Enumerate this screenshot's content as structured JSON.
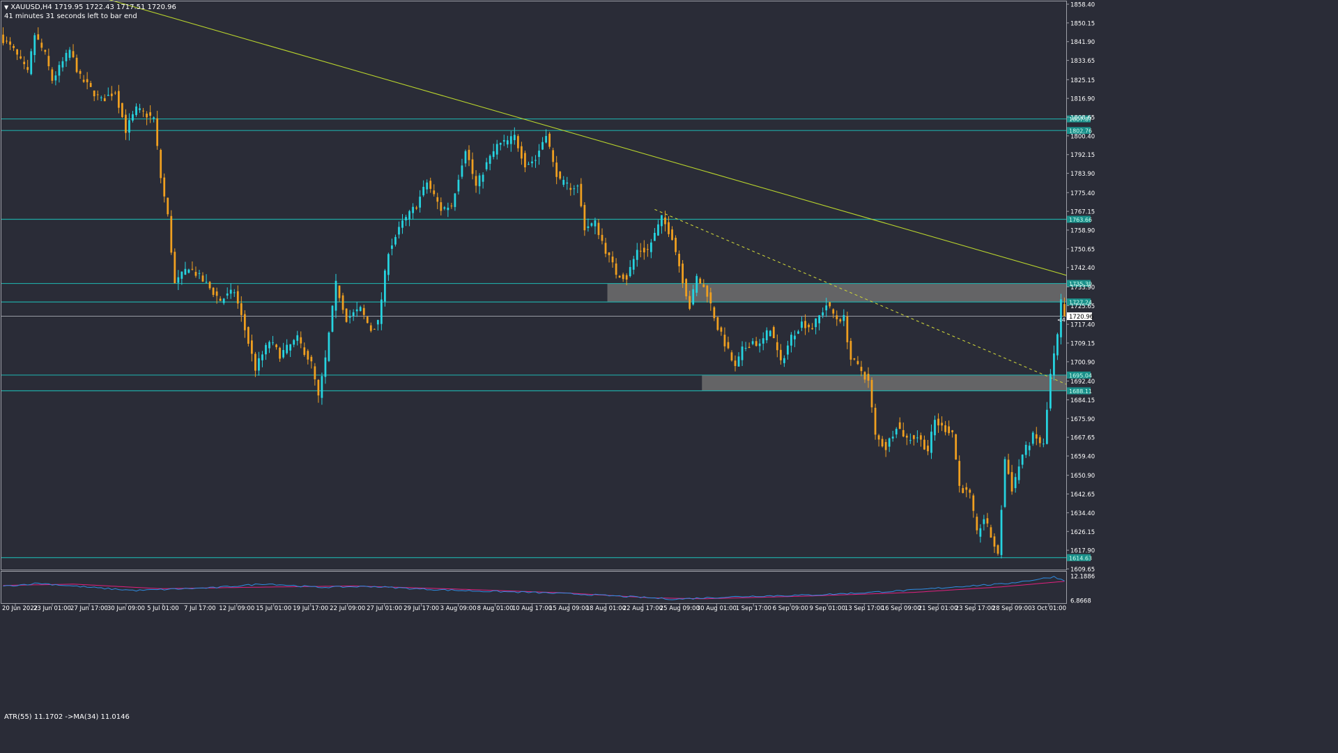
{
  "chart_data": {
    "type": "candlestick",
    "symbol_line": "XAUUSD,H4  1719.95 1722.43 1717.51 1720.96",
    "timer_text": "41 minutes 31 seconds left to bar end",
    "current_price": 1720.96,
    "current_price_label": "1720.96",
    "shift_marker": "<4",
    "y_axis": {
      "ylim": [
        1609.65,
        1858.4
      ],
      "tick_values": [
        1858.4,
        1850.15,
        1841.9,
        1833.65,
        1825.15,
        1816.9,
        1808.65,
        1800.4,
        1792.15,
        1783.9,
        1775.4,
        1767.15,
        1758.9,
        1750.65,
        1742.4,
        1733.9,
        1725.65,
        1717.4,
        1709.15,
        1700.9,
        1692.4,
        1684.15,
        1675.9,
        1667.65,
        1659.4,
        1650.9,
        1642.65,
        1634.4,
        1626.15,
        1617.9,
        1609.65
      ],
      "tick_labels": [
        "1858.40",
        "1850.15",
        "1841.90",
        "1833.65",
        "1825.15",
        "1816.90",
        "1808.65",
        "1800.40",
        "1792.15",
        "1783.90",
        "1775.40",
        "1767.15",
        "1758.90",
        "1750.65",
        "1742.40",
        "1733.90",
        "1725.65",
        "1717.40",
        "1709.15",
        "1700.90",
        "1692.40",
        "1684.15",
        "1675.90",
        "1667.65",
        "1659.40",
        "1650.90",
        "1642.65",
        "1634.40",
        "1626.15",
        "1617.90",
        "1609.65"
      ]
    },
    "x_axis": {
      "labels": [
        "20 Jun 2022",
        "23 Jun 01:00",
        "27 Jun 17:00",
        "30 Jun 09:00",
        "5 Jul 01:00",
        "7 Jul 17:00",
        "12 Jul 09:00",
        "15 Jul 01:00",
        "19 Jul 17:00",
        "22 Jul 09:00",
        "27 Jul 01:00",
        "29 Jul 17:00",
        "3 Aug 09:00",
        "8 Aug 01:00",
        "10 Aug 17:00",
        "15 Aug 09:00",
        "18 Aug 01:00",
        "22 Aug 17:00",
        "25 Aug 09:00",
        "30 Aug 01:00",
        "1 Sep 17:00",
        "6 Sep 09:00",
        "9 Sep 01:00",
        "13 Sep 17:00",
        "16 Sep 09:00",
        "21 Sep 01:00",
        "23 Sep 17:00",
        "28 Sep 09:00",
        "3 Oct 01:00"
      ]
    },
    "horizontal_levels": [
      {
        "value": 1807.87,
        "label": "1807.87"
      },
      {
        "value": 1802.76,
        "label": "1802.76"
      },
      {
        "value": 1763.66,
        "label": "1763.66"
      },
      {
        "value": 1735.39,
        "label": "1735.39"
      },
      {
        "value": 1727.24,
        "label": "1727.24"
      },
      {
        "value": 1695.04,
        "label": "1695.04"
      },
      {
        "value": 1688.11,
        "label": "1688.11"
      },
      {
        "value": 1614.63,
        "label": "1614.63"
      }
    ],
    "zones": [
      {
        "high": 1735.39,
        "low": 1727.24,
        "start_index": 173
      },
      {
        "high": 1695.04,
        "low": 1688.11,
        "start_index": 200
      }
    ],
    "trendlines": [
      {
        "style": "solid",
        "color": "#b9d42d",
        "from": {
          "index": 30,
          "value": 1860.5
        },
        "to": {
          "index": 304,
          "value": 1739.0
        }
      },
      {
        "style": "dashed",
        "color": "#c8cf3a",
        "from": {
          "index": 186,
          "value": 1768.0
        },
        "to": {
          "index": 304,
          "value": 1691.0
        }
      }
    ],
    "anchors": [
      {
        "index": 0,
        "value": 1843
      },
      {
        "index": 3,
        "value": 1838
      },
      {
        "index": 7,
        "value": 1828
      },
      {
        "index": 9,
        "value": 1845
      },
      {
        "index": 12,
        "value": 1836
      },
      {
        "index": 14,
        "value": 1825
      },
      {
        "index": 19,
        "value": 1838
      },
      {
        "index": 22,
        "value": 1826
      },
      {
        "index": 28,
        "value": 1816
      },
      {
        "index": 32,
        "value": 1820
      },
      {
        "index": 35,
        "value": 1803
      },
      {
        "index": 38,
        "value": 1812
      },
      {
        "index": 43,
        "value": 1808
      },
      {
        "index": 45,
        "value": 1782
      },
      {
        "index": 47,
        "value": 1765
      },
      {
        "index": 49,
        "value": 1735
      },
      {
        "index": 53,
        "value": 1743
      },
      {
        "index": 58,
        "value": 1735
      },
      {
        "index": 62,
        "value": 1728
      },
      {
        "index": 66,
        "value": 1732
      },
      {
        "index": 69,
        "value": 1715
      },
      {
        "index": 72,
        "value": 1698
      },
      {
        "index": 76,
        "value": 1710
      },
      {
        "index": 79,
        "value": 1704
      },
      {
        "index": 84,
        "value": 1711
      },
      {
        "index": 88,
        "value": 1700
      },
      {
        "index": 90,
        "value": 1685
      },
      {
        "index": 92,
        "value": 1702
      },
      {
        "index": 95,
        "value": 1735
      },
      {
        "index": 98,
        "value": 1720
      },
      {
        "index": 102,
        "value": 1724
      },
      {
        "index": 105,
        "value": 1715
      },
      {
        "index": 107,
        "value": 1718
      },
      {
        "index": 110,
        "value": 1750
      },
      {
        "index": 114,
        "value": 1762
      },
      {
        "index": 118,
        "value": 1770
      },
      {
        "index": 121,
        "value": 1780
      },
      {
        "index": 125,
        "value": 1768
      },
      {
        "index": 128,
        "value": 1770
      },
      {
        "index": 132,
        "value": 1795
      },
      {
        "index": 135,
        "value": 1778
      },
      {
        "index": 138,
        "value": 1788
      },
      {
        "index": 141,
        "value": 1796
      },
      {
        "index": 144,
        "value": 1798
      },
      {
        "index": 146,
        "value": 1800
      },
      {
        "index": 149,
        "value": 1788
      },
      {
        "index": 152,
        "value": 1790
      },
      {
        "index": 155,
        "value": 1802
      },
      {
        "index": 157,
        "value": 1788
      },
      {
        "index": 159,
        "value": 1780
      },
      {
        "index": 162,
        "value": 1778
      },
      {
        "index": 164,
        "value": 1778
      },
      {
        "index": 166,
        "value": 1760
      },
      {
        "index": 169,
        "value": 1762
      },
      {
        "index": 172,
        "value": 1750
      },
      {
        "index": 175,
        "value": 1740
      },
      {
        "index": 178,
        "value": 1738
      },
      {
        "index": 181,
        "value": 1750
      },
      {
        "index": 184,
        "value": 1750
      },
      {
        "index": 188,
        "value": 1764
      },
      {
        "index": 191,
        "value": 1756
      },
      {
        "index": 194,
        "value": 1737
      },
      {
        "index": 196,
        "value": 1725
      },
      {
        "index": 198,
        "value": 1738
      },
      {
        "index": 201,
        "value": 1731
      },
      {
        "index": 204,
        "value": 1716
      },
      {
        "index": 206,
        "value": 1709
      },
      {
        "index": 209,
        "value": 1698
      },
      {
        "index": 211,
        "value": 1706
      },
      {
        "index": 214,
        "value": 1710
      },
      {
        "index": 216,
        "value": 1708
      },
      {
        "index": 219,
        "value": 1716
      },
      {
        "index": 222,
        "value": 1700
      },
      {
        "index": 225,
        "value": 1712
      },
      {
        "index": 228,
        "value": 1718
      },
      {
        "index": 231,
        "value": 1716
      },
      {
        "index": 235,
        "value": 1726
      },
      {
        "index": 238,
        "value": 1720
      },
      {
        "index": 240,
        "value": 1720
      },
      {
        "index": 242,
        "value": 1702
      },
      {
        "index": 245,
        "value": 1697
      },
      {
        "index": 247,
        "value": 1692
      },
      {
        "index": 249,
        "value": 1668
      },
      {
        "index": 252,
        "value": 1663
      },
      {
        "index": 255,
        "value": 1673
      },
      {
        "index": 258,
        "value": 1667
      },
      {
        "index": 261,
        "value": 1668
      },
      {
        "index": 264,
        "value": 1662
      },
      {
        "index": 266,
        "value": 1675
      },
      {
        "index": 268,
        "value": 1672
      },
      {
        "index": 271,
        "value": 1670
      },
      {
        "index": 273,
        "value": 1646
      },
      {
        "index": 276,
        "value": 1642
      },
      {
        "index": 278,
        "value": 1625
      },
      {
        "index": 280,
        "value": 1632
      },
      {
        "index": 283,
        "value": 1620
      },
      {
        "index": 284,
        "value": 1615
      },
      {
        "index": 286,
        "value": 1658
      },
      {
        "index": 288,
        "value": 1645
      },
      {
        "index": 291,
        "value": 1660
      },
      {
        "index": 294,
        "value": 1668
      },
      {
        "index": 297,
        "value": 1664
      },
      {
        "index": 299,
        "value": 1695
      },
      {
        "index": 301,
        "value": 1712
      },
      {
        "index": 302,
        "value": 1727
      },
      {
        "index": 303,
        "value": 1721
      }
    ],
    "indicator": {
      "label": "ATR(55) 11.1702  ->MA(34) 11.0146",
      "atr_value": 11.1702,
      "ma_value": 11.0146,
      "ylim": [
        6.8668,
        12.1886
      ],
      "tick_labels": [
        "12.1886",
        "6.8668"
      ],
      "atr_anchors": [
        {
          "index": 0,
          "value": 9.9
        },
        {
          "index": 10,
          "value": 10.6
        },
        {
          "index": 18,
          "value": 10.1
        },
        {
          "index": 28,
          "value": 9.5
        },
        {
          "index": 38,
          "value": 9.0
        },
        {
          "index": 48,
          "value": 9.3
        },
        {
          "index": 60,
          "value": 9.6
        },
        {
          "index": 75,
          "value": 10.5
        },
        {
          "index": 90,
          "value": 9.7
        },
        {
          "index": 105,
          "value": 9.9
        },
        {
          "index": 120,
          "value": 9.3
        },
        {
          "index": 135,
          "value": 8.9
        },
        {
          "index": 150,
          "value": 8.6
        },
        {
          "index": 165,
          "value": 8.2
        },
        {
          "index": 180,
          "value": 7.6
        },
        {
          "index": 192,
          "value": 7.1
        },
        {
          "index": 200,
          "value": 7.4
        },
        {
          "index": 215,
          "value": 7.8
        },
        {
          "index": 230,
          "value": 8.0
        },
        {
          "index": 245,
          "value": 8.5
        },
        {
          "index": 260,
          "value": 9.1
        },
        {
          "index": 275,
          "value": 10.0
        },
        {
          "index": 285,
          "value": 10.4
        },
        {
          "index": 295,
          "value": 11.4
        },
        {
          "index": 300,
          "value": 12.0
        },
        {
          "index": 303,
          "value": 11.17
        }
      ],
      "ma_anchors": [
        {
          "index": 0,
          "value": 10.1
        },
        {
          "index": 20,
          "value": 10.4
        },
        {
          "index": 45,
          "value": 9.4
        },
        {
          "index": 70,
          "value": 9.7
        },
        {
          "index": 100,
          "value": 10.0
        },
        {
          "index": 130,
          "value": 9.3
        },
        {
          "index": 160,
          "value": 8.5
        },
        {
          "index": 185,
          "value": 7.4
        },
        {
          "index": 200,
          "value": 7.2
        },
        {
          "index": 230,
          "value": 7.8
        },
        {
          "index": 260,
          "value": 8.6
        },
        {
          "index": 285,
          "value": 9.8
        },
        {
          "index": 303,
          "value": 11.01
        }
      ]
    },
    "colors": {
      "background": "#2a2c37",
      "bull": "#26d4e0",
      "bear": "#f0a020",
      "level_line": "#1fa9a5",
      "level_label_bg": "#1a8f8a",
      "zone": "#6e6f6f",
      "atr_line": "#2f8de4",
      "ma_line": "#e2207e",
      "axis_text": "#ffffff",
      "grid_border": "#9ea0a8"
    }
  }
}
